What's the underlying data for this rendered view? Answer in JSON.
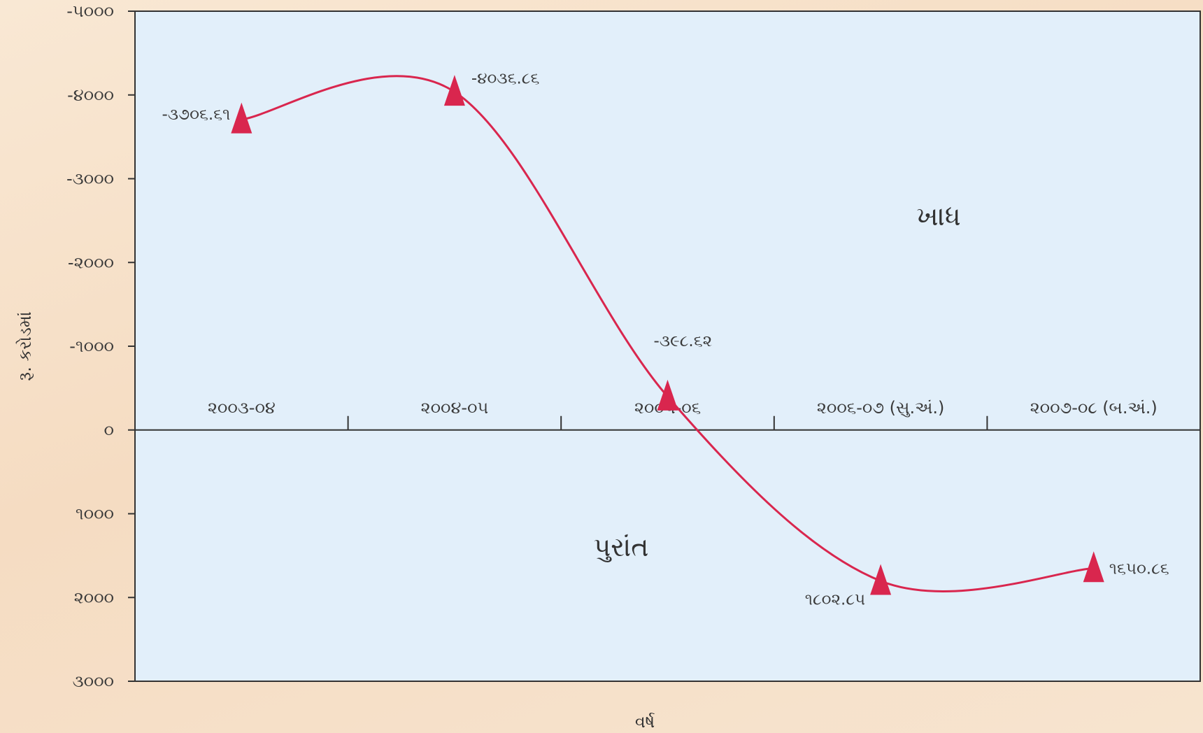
{
  "chart_data": {
    "type": "line",
    "title": "",
    "xlabel": "વર્ષ",
    "ylabel": "રૂ. કરોડમાં",
    "ylim": [
      -5000,
      3000
    ],
    "y_inverted": true,
    "yticks": [
      {
        "value": -5000,
        "label": "-૫૦૦૦"
      },
      {
        "value": -4000,
        "label": "-૪૦૦૦"
      },
      {
        "value": -3000,
        "label": "-૩૦૦૦"
      },
      {
        "value": -2000,
        "label": "-૨૦૦૦"
      },
      {
        "value": -1000,
        "label": "-૧૦૦૦"
      },
      {
        "value": 0,
        "label": "૦"
      },
      {
        "value": 1000,
        "label": "૧૦૦૦"
      },
      {
        "value": 2000,
        "label": "૨૦૦૦"
      },
      {
        "value": 3000,
        "label": "૩૦૦૦"
      }
    ],
    "categories": [
      "૨૦૦૩-૦૪",
      "૨૦૦૪-૦૫",
      "૨૦૦૫-૦૬",
      "૨૦૦૬-૦૭ (સુ.અં.)",
      "૨૦૦૭-૦૮ (બ.અં.)"
    ],
    "series": [
      {
        "values": [
          -3706.61,
          -4036.86,
          -398.62,
          1802.85,
          1650.86
        ],
        "point_labels": [
          "-૩૭૦૬.૬૧",
          "-૪૦૩૬.૮૬",
          "-૩૯૮.૬૨",
          "૧૮૦૨.૮૫",
          "૧૬૫૦.૮૬"
        ],
        "color": "#d9264e",
        "marker": "triangle"
      }
    ],
    "region_labels": {
      "upper": "ખાધ",
      "lower": "પુરાંત"
    },
    "grid": false,
    "colors": {
      "plot_background": "#e2effa",
      "axis": "#333333",
      "line": "#d9264e"
    }
  }
}
